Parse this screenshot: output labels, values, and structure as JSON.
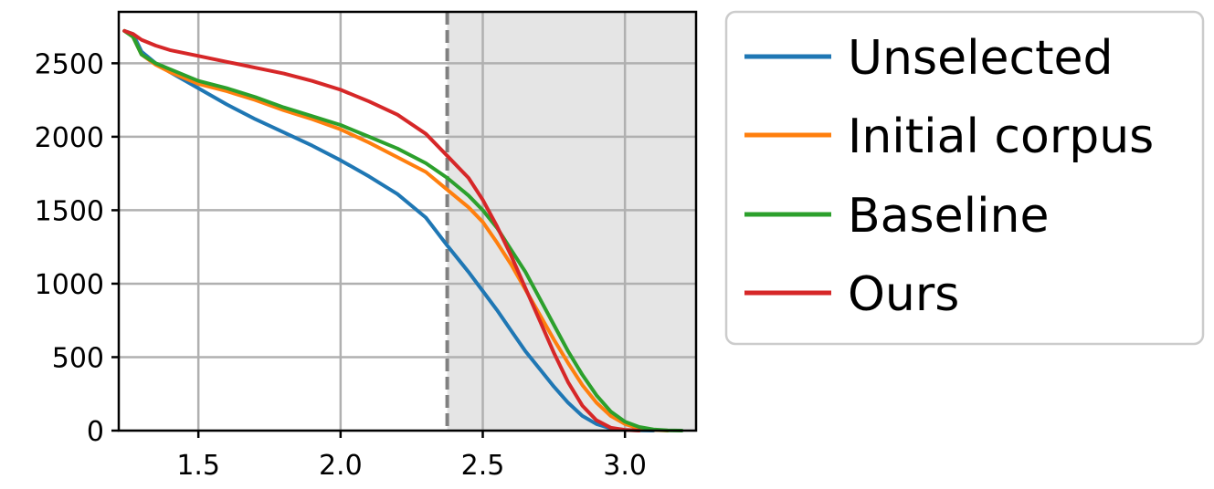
{
  "chart_data": {
    "type": "line",
    "title": "",
    "xlabel": "",
    "ylabel": "",
    "xlim": [
      1.22,
      3.25
    ],
    "ylim": [
      0,
      2850
    ],
    "xticks": [
      1.5,
      2.0,
      2.5,
      3.0
    ],
    "xtick_labels": [
      "1.5",
      "2.0",
      "2.5",
      "3.0"
    ],
    "yticks": [
      0,
      500,
      1000,
      1500,
      2000,
      2500
    ],
    "ytick_labels": [
      "0",
      "500",
      "1000",
      "1500",
      "2000",
      "2500"
    ],
    "grid": true,
    "legend_position": "outside-right",
    "vline": {
      "x": 2.375,
      "style": "dashed",
      "color": "#808080"
    },
    "shaded_region": {
      "x_from": 2.375,
      "x_to": 3.25,
      "color": "#e5e5e5"
    },
    "series": [
      {
        "name": "Unselected",
        "color": "#1f77b4",
        "x": [
          1.24,
          1.27,
          1.3,
          1.35,
          1.4,
          1.5,
          1.6,
          1.7,
          1.8,
          1.9,
          2.0,
          2.1,
          2.2,
          2.3,
          2.375,
          2.45,
          2.5,
          2.55,
          2.6,
          2.65,
          2.7,
          2.75,
          2.8,
          2.85,
          2.9,
          2.95,
          3.0,
          3.05,
          3.1
        ],
        "y": [
          2720,
          2700,
          2580,
          2500,
          2440,
          2330,
          2220,
          2120,
          2030,
          1940,
          1840,
          1730,
          1610,
          1450,
          1260,
          1080,
          950,
          820,
          680,
          540,
          420,
          300,
          190,
          100,
          45,
          15,
          5,
          2,
          0
        ]
      },
      {
        "name": "Initial corpus",
        "color": "#ff7f0e",
        "x": [
          1.24,
          1.27,
          1.3,
          1.35,
          1.4,
          1.5,
          1.6,
          1.7,
          1.8,
          1.9,
          2.0,
          2.1,
          2.2,
          2.3,
          2.375,
          2.45,
          2.5,
          2.55,
          2.6,
          2.65,
          2.7,
          2.75,
          2.8,
          2.85,
          2.9,
          2.95,
          3.0,
          3.05,
          3.1,
          3.15
        ],
        "y": [
          2720,
          2680,
          2560,
          2490,
          2440,
          2360,
          2310,
          2250,
          2180,
          2120,
          2050,
          1960,
          1860,
          1760,
          1640,
          1520,
          1420,
          1280,
          1130,
          960,
          790,
          620,
          460,
          310,
          190,
          100,
          45,
          15,
          5,
          0
        ]
      },
      {
        "name": "Baseline",
        "color": "#2ca02c",
        "x": [
          1.24,
          1.27,
          1.3,
          1.35,
          1.4,
          1.5,
          1.6,
          1.7,
          1.8,
          1.9,
          2.0,
          2.1,
          2.2,
          2.3,
          2.375,
          2.45,
          2.5,
          2.55,
          2.6,
          2.65,
          2.7,
          2.75,
          2.8,
          2.85,
          2.9,
          2.95,
          3.0,
          3.05,
          3.1,
          3.15,
          3.2
        ],
        "y": [
          2720,
          2680,
          2560,
          2500,
          2460,
          2380,
          2330,
          2270,
          2200,
          2140,
          2080,
          2000,
          1920,
          1820,
          1720,
          1600,
          1500,
          1380,
          1230,
          1080,
          900,
          720,
          540,
          380,
          240,
          130,
          60,
          25,
          8,
          2,
          0
        ]
      },
      {
        "name": "Ours",
        "color": "#d62728",
        "x": [
          1.24,
          1.27,
          1.3,
          1.35,
          1.4,
          1.5,
          1.6,
          1.7,
          1.8,
          1.9,
          2.0,
          2.1,
          2.2,
          2.3,
          2.375,
          2.45,
          2.5,
          2.55,
          2.6,
          2.65,
          2.7,
          2.75,
          2.8,
          2.85,
          2.9,
          2.95,
          3.0,
          3.05
        ],
        "y": [
          2720,
          2700,
          2660,
          2620,
          2590,
          2550,
          2510,
          2470,
          2430,
          2380,
          2320,
          2240,
          2150,
          2020,
          1870,
          1720,
          1570,
          1390,
          1190,
          970,
          750,
          530,
          330,
          170,
          70,
          20,
          5,
          0
        ]
      }
    ]
  }
}
